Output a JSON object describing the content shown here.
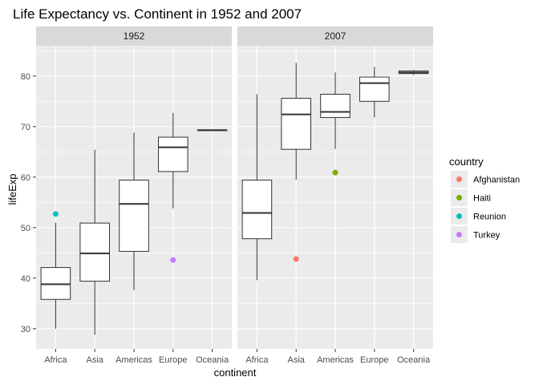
{
  "chart_data": {
    "type": "boxplot",
    "title": "Life Expectancy vs. Continent in 1952 and 2007",
    "xlabel": "continent",
    "ylabel": "lifeExp",
    "ylim": [
      26,
      86
    ],
    "yticks": [
      30,
      40,
      50,
      60,
      70,
      80
    ],
    "categories": [
      "Africa",
      "Asia",
      "Americas",
      "Europe",
      "Oceania"
    ],
    "grid": true,
    "legend": {
      "title": "country",
      "placement": "right",
      "items": [
        {
          "name": "Afghanistan",
          "color": "#F8766D"
        },
        {
          "name": "Haiti",
          "color": "#7CAE00"
        },
        {
          "name": "Reunion",
          "color": "#00BFC4"
        },
        {
          "name": "Turkey",
          "color": "#C77CFF"
        }
      ]
    },
    "panels": [
      {
        "label": "1952",
        "boxes": [
          {
            "category": "Africa",
            "min": 30.0,
            "q1": 35.8,
            "median": 38.8,
            "q3": 42.1,
            "max": 51.0
          },
          {
            "category": "Asia",
            "min": 28.8,
            "q1": 39.4,
            "median": 44.9,
            "q3": 50.9,
            "max": 65.4
          },
          {
            "category": "Americas",
            "min": 37.6,
            "q1": 45.3,
            "median": 54.7,
            "q3": 59.4,
            "max": 68.8
          },
          {
            "category": "Europe",
            "min": 53.8,
            "q1": 61.1,
            "median": 65.9,
            "q3": 67.9,
            "max": 72.7
          },
          {
            "category": "Oceania",
            "min": 69.1,
            "q1": 69.2,
            "median": 69.3,
            "q3": 69.3,
            "max": 69.4
          }
        ],
        "points": [
          {
            "category": "Africa",
            "value": 52.7,
            "country": "Reunion"
          },
          {
            "category": "Europe",
            "value": 43.6,
            "country": "Turkey"
          }
        ]
      },
      {
        "label": "2007",
        "boxes": [
          {
            "category": "Africa",
            "min": 39.6,
            "q1": 47.8,
            "median": 52.9,
            "q3": 59.4,
            "max": 76.4
          },
          {
            "category": "Asia",
            "min": 59.5,
            "q1": 65.5,
            "median": 72.4,
            "q3": 75.6,
            "max": 82.6
          },
          {
            "category": "Americas",
            "min": 65.6,
            "q1": 71.8,
            "median": 72.9,
            "q3": 76.4,
            "max": 80.7
          },
          {
            "category": "Europe",
            "min": 71.8,
            "q1": 75.0,
            "median": 78.6,
            "q3": 79.8,
            "max": 81.8
          },
          {
            "category": "Oceania",
            "min": 80.2,
            "q1": 80.5,
            "median": 80.7,
            "q3": 81.0,
            "max": 81.2
          }
        ],
        "points": [
          {
            "category": "Asia",
            "value": 43.8,
            "country": "Afghanistan"
          },
          {
            "category": "Americas",
            "value": 60.9,
            "country": "Haiti"
          }
        ]
      }
    ]
  }
}
